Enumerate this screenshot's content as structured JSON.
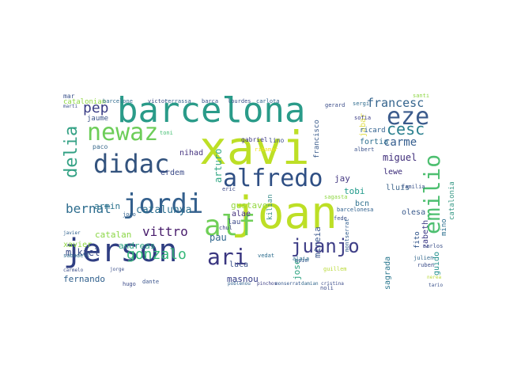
{
  "words": [
    {
      "text": "xavi",
      "color": "#bddf26",
      "rot": 0
    },
    {
      "text": "joan",
      "color": "#bddf26",
      "rot": 0
    },
    {
      "text": "barcelona",
      "color": "#2a9b89",
      "rot": 0
    },
    {
      "text": "jerson",
      "color": "#2f3e82",
      "rot": 0
    },
    {
      "text": "didac",
      "color": "#33537e",
      "rot": 0
    },
    {
      "text": "jordi",
      "color": "#34608d",
      "rot": 0
    },
    {
      "text": "newaz",
      "color": "#6dcd59",
      "rot": 0
    },
    {
      "text": "alfredo",
      "color": "#2f4f84",
      "rot": 0
    },
    {
      "text": "alf",
      "color": "#6fcf57",
      "rot": 0
    },
    {
      "text": "ari",
      "color": "#3a3680",
      "rot": 0
    },
    {
      "text": "juanjo",
      "color": "#3f3f87",
      "rot": 0
    },
    {
      "text": "eze",
      "color": "#3b5b8c",
      "rot": 0
    },
    {
      "text": "emilio",
      "color": "#4dbf70",
      "rot": 90
    },
    {
      "text": "delia",
      "color": "#33a184",
      "rot": 90
    },
    {
      "text": "gonzalo",
      "color": "#35b779",
      "rot": 0
    },
    {
      "text": "francesc",
      "color": "#34648d",
      "rot": 0
    },
    {
      "text": "cesc",
      "color": "#2a7f8e",
      "rot": 0
    },
    {
      "text": "carme",
      "color": "#345d8e",
      "rot": 0
    },
    {
      "text": "miguel",
      "color": "#3f2d7a",
      "rot": 0
    },
    {
      "text": "pep",
      "color": "#3a3d85",
      "rot": 0
    },
    {
      "text": "bernat",
      "color": "#2e6d8e",
      "rot": 0
    },
    {
      "text": "vittro",
      "color": "#471b6b",
      "rot": 0
    },
    {
      "text": "arturo",
      "color": "#36a986",
      "rot": 90
    },
    {
      "text": "catalunya",
      "color": "#2b6e8e",
      "rot": 0
    },
    {
      "text": "armin",
      "color": "#2c748e",
      "rot": 0
    },
    {
      "text": "mikael",
      "color": "#3d4c88",
      "rot": 0
    },
    {
      "text": "catalan",
      "color": "#8bd646",
      "rot": 0
    },
    {
      "text": "fernando",
      "color": "#2f5f8c",
      "rot": 0
    },
    {
      "text": "pau",
      "color": "#31678e",
      "rot": 0
    },
    {
      "text": "masnou",
      "color": "#333a84",
      "rot": 0
    },
    {
      "text": "luca",
      "color": "#3c528b",
      "rot": 0
    },
    {
      "text": "jay",
      "color": "#463a83",
      "rot": 0
    },
    {
      "text": "tobi",
      "color": "#1f9a8a",
      "rot": 0
    },
    {
      "text": "lewe",
      "color": "#3a2a78",
      "rot": 0
    },
    {
      "text": "bcn",
      "color": "#2d708e",
      "rot": 0
    },
    {
      "text": "alae",
      "color": "#45307c",
      "rot": 0
    },
    {
      "text": "lau",
      "color": "#3f4b8a",
      "rot": 0
    },
    {
      "text": "gustavo",
      "color": "#94d840",
      "rot": 0
    },
    {
      "text": "olesa",
      "color": "#3a5a8c",
      "rot": 0
    },
    {
      "text": "lluis",
      "color": "#446a8e",
      "rot": 0
    },
    {
      "text": "fortia",
      "color": "#2c6e8e",
      "rot": 0
    },
    {
      "text": "jose",
      "color": "#2aa17e",
      "rot": 90
    },
    {
      "text": "mireia",
      "color": "#39568c",
      "rot": 90
    },
    {
      "text": "kilian",
      "color": "#3d8f8c",
      "rot": 90
    },
    {
      "text": "catalonia",
      "color": "#3a9a87",
      "rot": 90
    },
    {
      "text": "mino",
      "color": "#2c6f8e",
      "rot": 90
    },
    {
      "text": "guido",
      "color": "#1f8f8c",
      "rot": 90
    },
    {
      "text": "fito",
      "color": "#2b4f86",
      "rot": 90
    },
    {
      "text": "zabeth",
      "color": "#3a3784",
      "rot": 90
    },
    {
      "text": "jabar",
      "color": "#e0dc46",
      "rot": 90
    },
    {
      "text": "andreas",
      "color": "#2ea383",
      "rot": 0
    },
    {
      "text": "xavier",
      "color": "#8fd744",
      "rot": 0
    },
    {
      "text": "sagrada",
      "color": "#2a778e",
      "rot": 90
    },
    {
      "text": "nihad",
      "color": "#463480",
      "rot": 0
    },
    {
      "text": "erdem",
      "color": "#3b4a88",
      "rot": 0
    },
    {
      "text": "jaume",
      "color": "#3b5389",
      "rot": 0
    },
    {
      "text": "paco",
      "color": "#3a6a8c",
      "rot": 0
    },
    {
      "text": "gabriel",
      "color": "#3f3a83",
      "rot": 0
    },
    {
      "text": "lino",
      "color": "#3e4f8a",
      "rot": 0
    },
    {
      "text": "francisco",
      "color": "#3b5c8c",
      "rot": 90
    },
    {
      "text": "ricard",
      "color": "#2c5e8c",
      "rot": 0
    },
    {
      "text": "catalonian",
      "color": "#8fd744",
      "rot": 0
    },
    {
      "text": "barcelone",
      "color": "#2f6b8e",
      "rot": 0
    },
    {
      "text": "victor",
      "color": "#3b4c88",
      "rot": 0
    },
    {
      "text": "terrassa",
      "color": "#34608d",
      "rot": 0
    },
    {
      "text": "barca",
      "color": "#35508a",
      "rot": 0
    },
    {
      "text": "lourdes",
      "color": "#3c4f8a",
      "rot": 0
    },
    {
      "text": "carlota",
      "color": "#2c5f8c",
      "rot": 0
    },
    {
      "text": "toni",
      "color": "#42be71",
      "rot": 0
    },
    {
      "text": "ribamar",
      "color": "#f2e51d",
      "rot": 0
    },
    {
      "text": "albert",
      "color": "#3b528b",
      "rot": 0
    },
    {
      "text": "eric",
      "color": "#3e4b89",
      "rot": 0
    },
    {
      "text": "chul",
      "color": "#3b3d84",
      "rot": 0
    },
    {
      "text": "vedat",
      "color": "#2e6e8e",
      "rot": 0
    },
    {
      "text": "quim",
      "color": "#34578c",
      "rot": 0
    },
    {
      "text": "montserrat",
      "color": "#2f5b8c",
      "rot": 90
    },
    {
      "text": "familia",
      "color": "#3b538a",
      "rot": 0
    },
    {
      "text": "dante",
      "color": "#3a548c",
      "rot": 0
    },
    {
      "text": "sabadell",
      "color": "#2e6c8e",
      "rot": 0
    },
    {
      "text": "hugo",
      "color": "#3a4988",
      "rot": 0
    },
    {
      "text": "joao",
      "color": "#33638d",
      "rot": 0
    },
    {
      "text": "noli",
      "color": "#3a4a88",
      "rot": 0
    },
    {
      "text": "fede",
      "color": "#3b528b",
      "rot": 0
    },
    {
      "text": "julien",
      "color": "#35698e",
      "rot": 0
    },
    {
      "text": "ruben",
      "color": "#3b4d89",
      "rot": 0
    },
    {
      "text": "carlos",
      "color": "#3a4e88",
      "rot": 0
    },
    {
      "text": "guillem",
      "color": "#bada3a",
      "rot": 0
    },
    {
      "text": "alaia",
      "color": "#2f728e",
      "rot": 0
    },
    {
      "text": "barcelonesa",
      "color": "#2c5e8c",
      "rot": 0
    },
    {
      "text": "sofia",
      "color": "#3a3b84",
      "rot": 0
    },
    {
      "text": "marti",
      "color": "#3b528b",
      "rot": 0
    },
    {
      "text": "sergi",
      "color": "#2f6b8e",
      "rot": 0
    },
    {
      "text": "gerard",
      "color": "#3b4d89",
      "rot": 0
    },
    {
      "text": "santi",
      "color": "#8ed645",
      "rot": 0
    },
    {
      "text": "poblenou",
      "color": "#2c5f8c",
      "rot": 0
    },
    {
      "text": "pinchos",
      "color": "#3b3d84",
      "rot": 0
    },
    {
      "text": "monserrat",
      "color": "#34578c",
      "rot": 0
    },
    {
      "text": "damian",
      "color": "#35698e",
      "rot": 0
    },
    {
      "text": "cristina",
      "color": "#3a4a88",
      "rot": 0
    },
    {
      "text": "tario",
      "color": "#3b528b",
      "rot": 0
    },
    {
      "text": "carmelo",
      "color": "#3b4d89",
      "rot": 0
    },
    {
      "text": "jorge",
      "color": "#3a4e88",
      "rot": 0
    },
    {
      "text": "javier",
      "color": "#2c5e8c",
      "rot": 0
    },
    {
      "text": "nerea",
      "color": "#bada3a",
      "rot": 0
    },
    {
      "text": "sagasta",
      "color": "#8fd744",
      "rot": 0
    },
    {
      "text": "mar",
      "color": "#3b528b",
      "rot": 0
    }
  ]
}
